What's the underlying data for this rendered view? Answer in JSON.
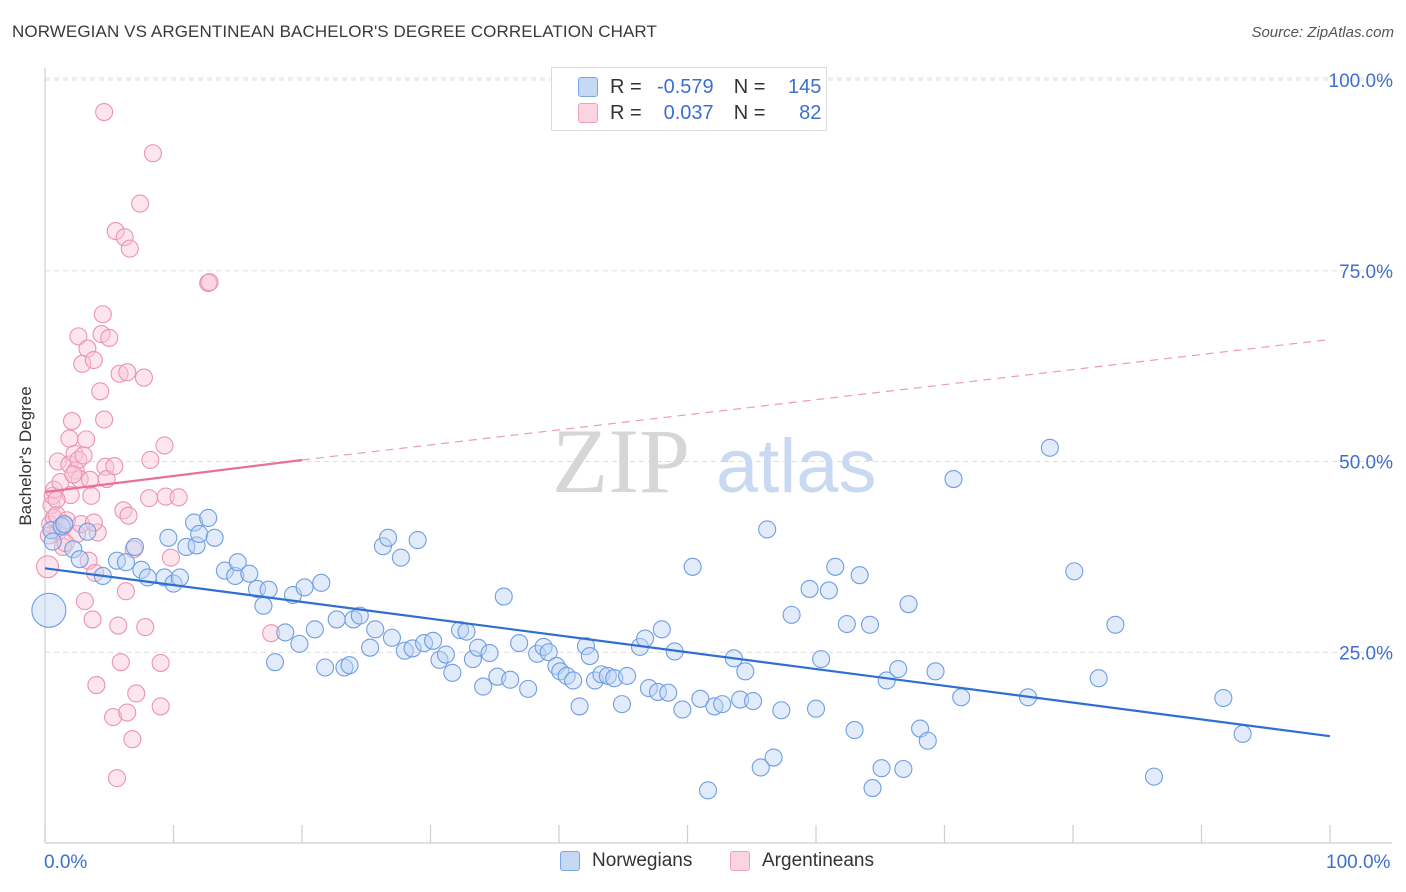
{
  "title": "NORWEGIAN VS ARGENTINEAN BACHELOR'S DEGREE CORRELATION CHART",
  "source": "Source: ZipAtlas.com",
  "watermark": {
    "zip": "ZIP",
    "atlas": "atlas"
  },
  "legend_top": {
    "rows": [
      {
        "r_label": "R =",
        "r_value": "-0.579",
        "n_label": "N =",
        "n_value": "145",
        "color": "#7aa6e8"
      },
      {
        "r_label": "R =",
        "r_value": "0.037",
        "n_label": "N =",
        "n_value": "82",
        "color": "#f0a0bb"
      }
    ]
  },
  "bottom_legend": [
    {
      "label": "Norwegians",
      "color": "#7aa6e8"
    },
    {
      "label": "Argentineans",
      "color": "#f0a0bb"
    }
  ],
  "chart_data": {
    "type": "scatter",
    "title": "NORWEGIAN VS ARGENTINEAN BACHELOR'S DEGREE CORRELATION CHART",
    "xlabel": "",
    "ylabel": "Bachelor's Degree",
    "xlim": [
      0,
      100
    ],
    "ylim": [
      0,
      100
    ],
    "x_tick_labels": [
      "0.0%",
      "100.0%"
    ],
    "y_ticks": [
      25,
      50,
      75,
      100
    ],
    "y_tick_labels": [
      "25.0%",
      "50.0%",
      "75.0%",
      "100.0%"
    ],
    "grid": true,
    "legend_position": "bottom-center",
    "series": [
      {
        "name": "Norwegians",
        "color": "#7aa6e8",
        "trend": {
          "x": [
            0,
            100
          ],
          "y": [
            36,
            14
          ]
        },
        "points": [
          [
            0.3,
            30.5
          ],
          [
            0.5,
            41
          ],
          [
            0.6,
            39.5
          ],
          [
            1.3,
            41.5
          ],
          [
            1.5,
            41.8
          ],
          [
            2.2,
            38.5
          ],
          [
            2.7,
            37.2
          ],
          [
            3.3,
            40.8
          ],
          [
            4.5,
            35
          ],
          [
            5.6,
            37
          ],
          [
            6.3,
            36.8
          ],
          [
            7,
            38.8
          ],
          [
            7.5,
            35.8
          ],
          [
            8,
            34.8
          ],
          [
            9.3,
            34.8
          ],
          [
            9.6,
            40
          ],
          [
            10,
            34
          ],
          [
            10.5,
            34.8
          ],
          [
            11,
            38.8
          ],
          [
            11.6,
            42
          ],
          [
            11.8,
            39
          ],
          [
            12,
            40.5
          ],
          [
            12.7,
            42.6
          ],
          [
            13.2,
            40
          ],
          [
            14,
            35.7
          ],
          [
            14.8,
            35
          ],
          [
            15,
            36.8
          ],
          [
            15.9,
            35.3
          ],
          [
            16.5,
            33.3
          ],
          [
            17,
            31.1
          ],
          [
            17.4,
            33.2
          ],
          [
            17.9,
            23.7
          ],
          [
            18.7,
            27.6
          ],
          [
            19.3,
            32.5
          ],
          [
            19.8,
            26.1
          ],
          [
            20.2,
            33.5
          ],
          [
            21,
            28
          ],
          [
            21.5,
            34.1
          ],
          [
            21.8,
            23
          ],
          [
            22.7,
            29.3
          ],
          [
            23.3,
            23
          ],
          [
            23.7,
            23.3
          ],
          [
            24,
            29.3
          ],
          [
            24.5,
            29.8
          ],
          [
            25.3,
            25.6
          ],
          [
            25.7,
            28
          ],
          [
            26.3,
            38.9
          ],
          [
            26.7,
            40
          ],
          [
            27,
            26.9
          ],
          [
            27.7,
            37.4
          ],
          [
            28,
            25.2
          ],
          [
            28.6,
            25.5
          ],
          [
            29,
            39.7
          ],
          [
            29.5,
            26.2
          ],
          [
            30.2,
            26.5
          ],
          [
            30.7,
            24
          ],
          [
            31.2,
            24.7
          ],
          [
            31.7,
            22.3
          ],
          [
            32.3,
            27.9
          ],
          [
            32.8,
            27.7
          ],
          [
            33.3,
            24.1
          ],
          [
            33.7,
            25.6
          ],
          [
            34.1,
            20.5
          ],
          [
            34.6,
            24.9
          ],
          [
            35.2,
            21.8
          ],
          [
            35.7,
            32.3
          ],
          [
            36.2,
            21.4
          ],
          [
            36.9,
            26.2
          ],
          [
            37.6,
            20.2
          ],
          [
            38.3,
            24.8
          ],
          [
            38.8,
            25.7
          ],
          [
            39.2,
            25
          ],
          [
            39.8,
            23.2
          ],
          [
            40.1,
            22.5
          ],
          [
            40.6,
            21.9
          ],
          [
            41.1,
            21.3
          ],
          [
            41.6,
            17.9
          ],
          [
            42.1,
            25.8
          ],
          [
            42.4,
            24.5
          ],
          [
            42.8,
            21.3
          ],
          [
            43.3,
            22.1
          ],
          [
            43.8,
            21.9
          ],
          [
            44.3,
            21.6
          ],
          [
            44.9,
            18.2
          ],
          [
            45.3,
            21.9
          ],
          [
            46.3,
            25.7
          ],
          [
            46.7,
            26.8
          ],
          [
            47,
            20.3
          ],
          [
            47.7,
            19.8
          ],
          [
            48,
            28
          ],
          [
            48.5,
            19.7
          ],
          [
            49,
            25.1
          ],
          [
            49.6,
            17.5
          ],
          [
            50.4,
            36.2
          ],
          [
            51,
            18.9
          ],
          [
            51.6,
            6.9
          ],
          [
            52.1,
            17.9
          ],
          [
            52.7,
            18.2
          ],
          [
            53.6,
            24.2
          ],
          [
            54.1,
            18.8
          ],
          [
            54.5,
            22.5
          ],
          [
            55.1,
            18.6
          ],
          [
            55.7,
            9.9
          ],
          [
            56.2,
            41.1
          ],
          [
            56.7,
            11.2
          ],
          [
            57.3,
            17.4
          ],
          [
            58.1,
            29.9
          ],
          [
            59.5,
            33.3
          ],
          [
            60,
            17.6
          ],
          [
            60.4,
            24.1
          ],
          [
            61,
            33.1
          ],
          [
            61.5,
            36.2
          ],
          [
            62.4,
            28.7
          ],
          [
            63,
            14.8
          ],
          [
            63.4,
            35.1
          ],
          [
            64.2,
            28.6
          ],
          [
            64.4,
            7.2
          ],
          [
            65.1,
            9.8
          ],
          [
            65.5,
            21.3
          ],
          [
            66.4,
            22.8
          ],
          [
            66.8,
            9.7
          ],
          [
            67.2,
            31.3
          ],
          [
            68.1,
            15
          ],
          [
            68.7,
            13.4
          ],
          [
            69.3,
            22.5
          ],
          [
            70.7,
            47.7
          ],
          [
            71.3,
            19.1
          ],
          [
            76.5,
            19.1
          ],
          [
            78.2,
            51.8
          ],
          [
            80.1,
            35.6
          ],
          [
            82,
            21.6
          ],
          [
            83.3,
            28.6
          ],
          [
            86.3,
            8.7
          ],
          [
            91.7,
            19
          ],
          [
            93.2,
            14.3
          ]
        ]
      },
      {
        "name": "Argentineans",
        "color": "#f0a0bb",
        "trend": {
          "x": [
            0,
            20
          ],
          "y": [
            46,
            50.2
          ]
        },
        "trend_extension": {
          "x": [
            20,
            100
          ],
          "y": [
            50.2,
            66
          ]
        },
        "points": [
          [
            0.2,
            36.2
          ],
          [
            0.4,
            41.8
          ],
          [
            0.5,
            44.3
          ],
          [
            0.6,
            45.5
          ],
          [
            0.7,
            42.6
          ],
          [
            0.7,
            46.3
          ],
          [
            0.9,
            43
          ],
          [
            1,
            50
          ],
          [
            1,
            40.8
          ],
          [
            1.2,
            47.3
          ],
          [
            1.4,
            38.8
          ],
          [
            1.5,
            41.6
          ],
          [
            1.7,
            42.3
          ],
          [
            1.9,
            49.6
          ],
          [
            1.9,
            53
          ],
          [
            2,
            45.6
          ],
          [
            2.1,
            55.3
          ],
          [
            2.3,
            51
          ],
          [
            2.4,
            48.8
          ],
          [
            2.5,
            40.5
          ],
          [
            2.6,
            50.2
          ],
          [
            2.6,
            66.4
          ],
          [
            2.7,
            47.7
          ],
          [
            2.8,
            41.8
          ],
          [
            2.9,
            62.8
          ],
          [
            3.1,
            31.7
          ],
          [
            3.2,
            52.9
          ],
          [
            3.3,
            64.8
          ],
          [
            3.4,
            37
          ],
          [
            3.5,
            47.6
          ],
          [
            3.6,
            45.5
          ],
          [
            3.7,
            29.3
          ],
          [
            3.8,
            63.3
          ],
          [
            3.9,
            35.4
          ],
          [
            4,
            20.7
          ],
          [
            4.1,
            40.7
          ],
          [
            4.3,
            59.2
          ],
          [
            4.4,
            66.7
          ],
          [
            4.5,
            69.3
          ],
          [
            4.6,
            55.5
          ],
          [
            4.6,
            95.8
          ],
          [
            4.7,
            49.3
          ],
          [
            4.8,
            47.7
          ],
          [
            5,
            66.2
          ],
          [
            5.3,
            16.5
          ],
          [
            5.4,
            49.4
          ],
          [
            5.5,
            80.2
          ],
          [
            5.6,
            8.5
          ],
          [
            5.7,
            28.5
          ],
          [
            5.8,
            61.5
          ],
          [
            5.9,
            23.7
          ],
          [
            6.1,
            43.6
          ],
          [
            6.2,
            79.4
          ],
          [
            6.3,
            33
          ],
          [
            6.4,
            17.1
          ],
          [
            6.4,
            61.7
          ],
          [
            6.5,
            42.9
          ],
          [
            6.6,
            77.9
          ],
          [
            6.8,
            13.6
          ],
          [
            7.1,
            19.6
          ],
          [
            7.4,
            83.8
          ],
          [
            7.7,
            61
          ],
          [
            7.8,
            28.3
          ],
          [
            8.1,
            45.2
          ],
          [
            8.2,
            50.2
          ],
          [
            8.4,
            90.4
          ],
          [
            9,
            23.6
          ],
          [
            9,
            17.9
          ],
          [
            9.3,
            52.1
          ],
          [
            9.4,
            45.4
          ],
          [
            9.8,
            37.4
          ],
          [
            10.4,
            45.3
          ],
          [
            12.7,
            73.4
          ],
          [
            12.8,
            73.5
          ],
          [
            17.6,
            27.5
          ],
          [
            0.3,
            40.3
          ],
          [
            0.9,
            45
          ],
          [
            1.6,
            39.3
          ],
          [
            2.2,
            48.3
          ],
          [
            3,
            50.8
          ],
          [
            3.8,
            42
          ],
          [
            6.9,
            38.5
          ]
        ]
      }
    ]
  }
}
